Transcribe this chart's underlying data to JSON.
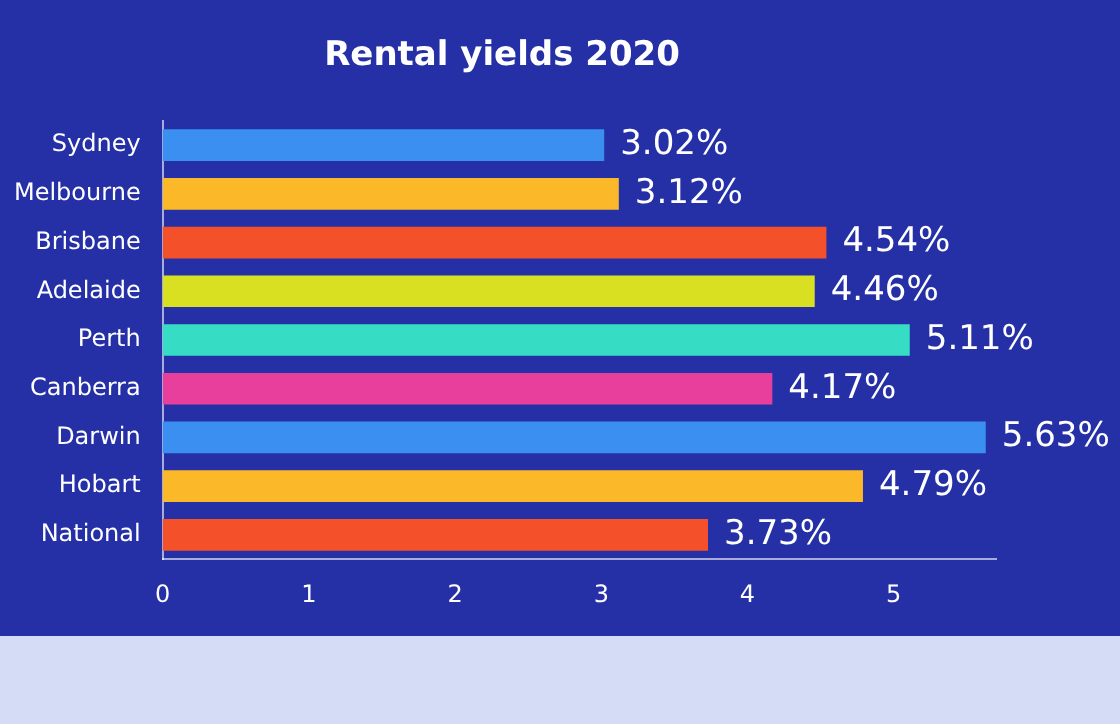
{
  "chart_data": {
    "type": "bar",
    "orientation": "horizontal",
    "title": "Rental yields 2020",
    "categories": [
      "Sydney",
      "Melbourne",
      "Brisbane",
      "Adelaide",
      "Perth",
      "Canberra",
      "Darwin",
      "Hobart",
      "National"
    ],
    "values": [
      3.02,
      3.12,
      4.54,
      4.46,
      5.11,
      4.17,
      5.63,
      4.79,
      3.73
    ],
    "value_labels": [
      "3.02%",
      "3.12%",
      "4.54%",
      "4.46%",
      "5.11%",
      "4.17%",
      "5.63%",
      "4.79%",
      "3.73%"
    ],
    "colors": [
      "#3a8ff0",
      "#fbb829",
      "#f4502a",
      "#d8e021",
      "#36dcc4",
      "#e83e9c",
      "#3a8ff0",
      "#fbb829",
      "#f4502a"
    ],
    "xlim": [
      0,
      5.7
    ],
    "xticks": [
      0,
      1,
      2,
      3,
      4,
      5
    ],
    "grid": false,
    "legend": false
  }
}
